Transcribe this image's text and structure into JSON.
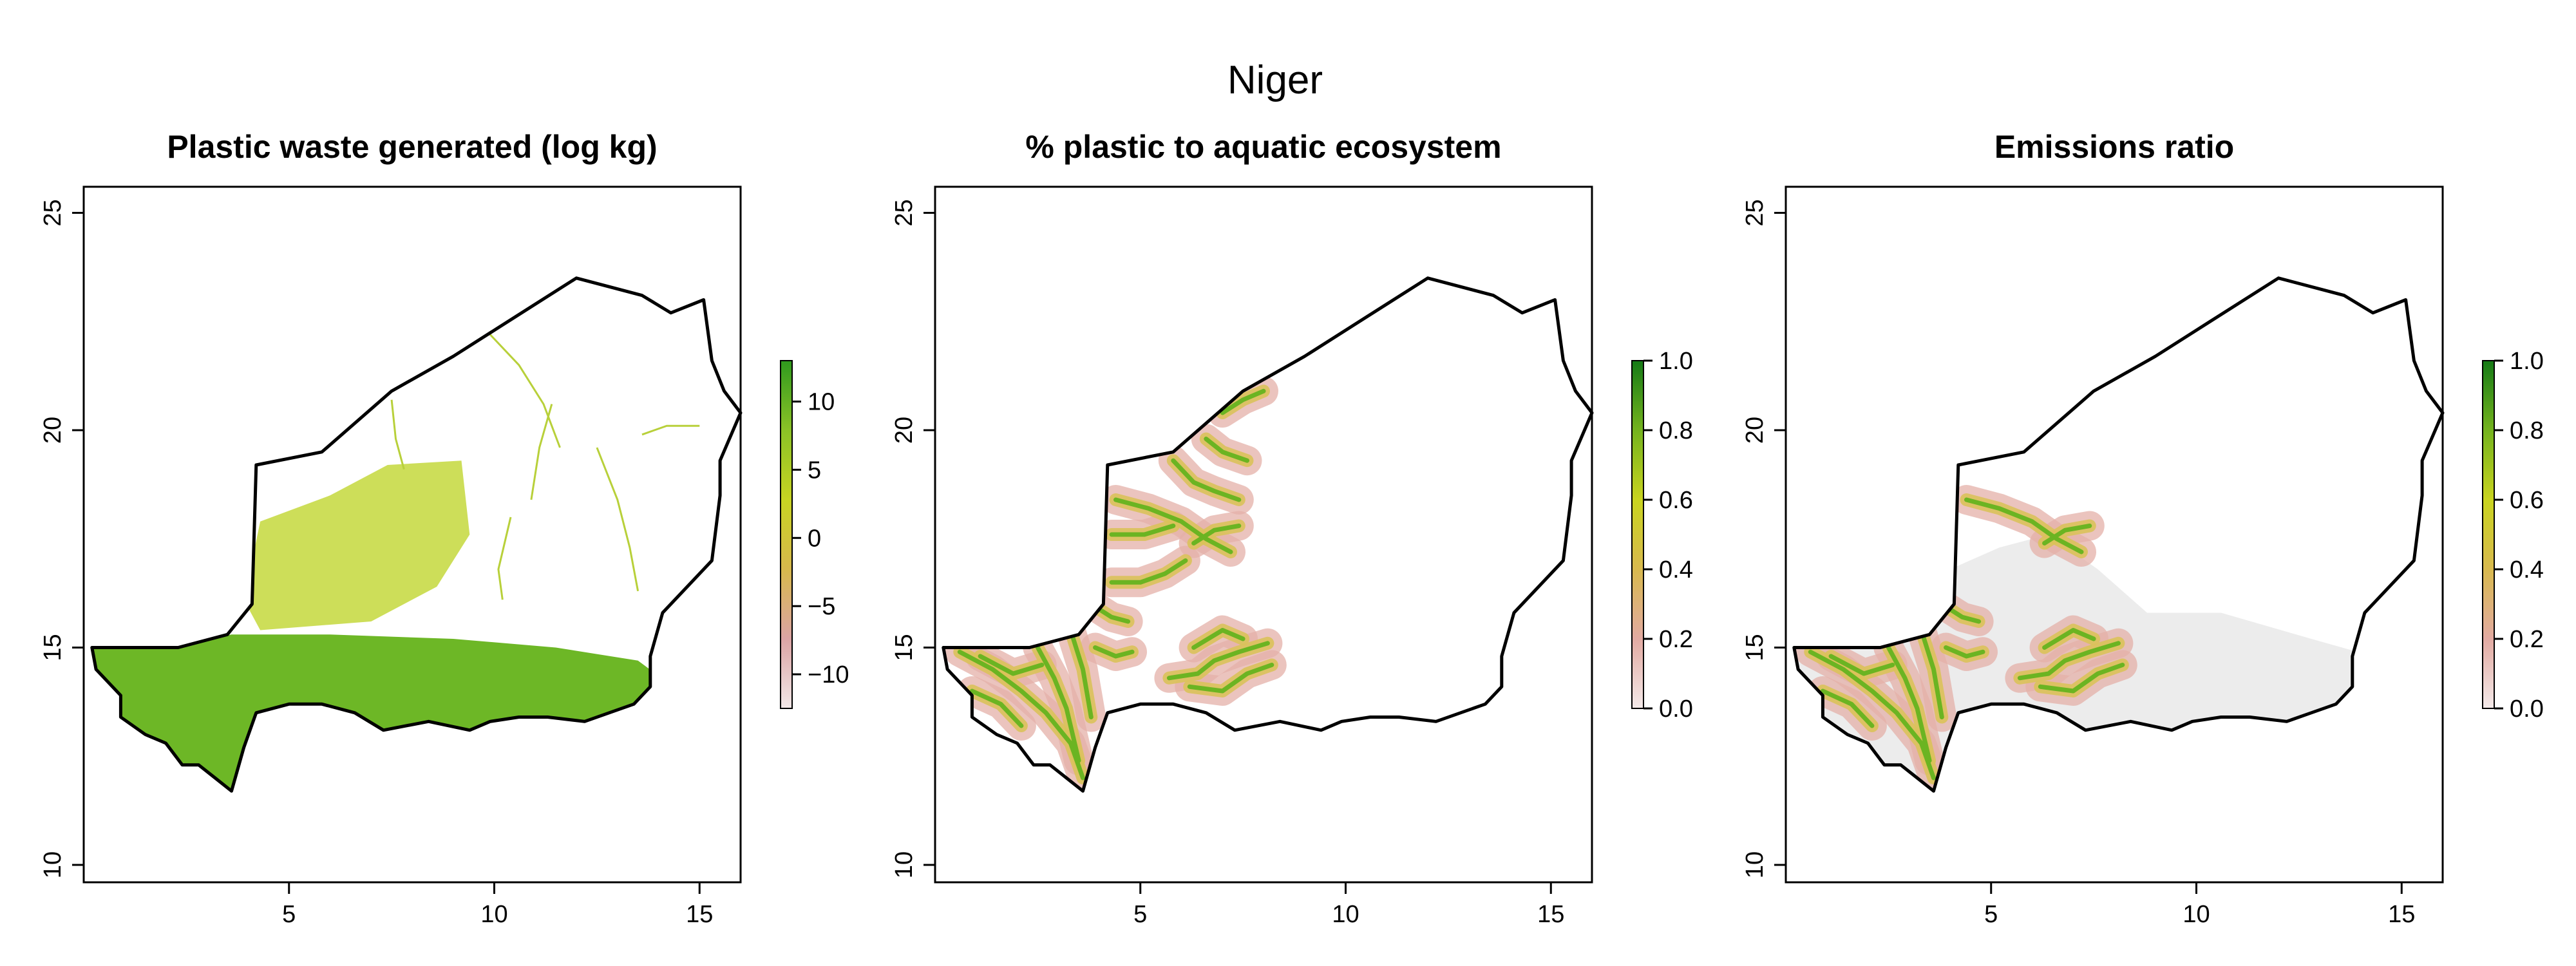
{
  "figure": {
    "title": "Niger"
  },
  "chart_data": [
    {
      "type": "heatmap",
      "title": "Plastic waste generated (log kg)",
      "xlim": [
        0,
        16
      ],
      "ylim": [
        9.6,
        25.6
      ],
      "xticks": [
        5,
        10,
        15
      ],
      "yticks": [
        10,
        15,
        20,
        25
      ],
      "legend": {
        "position": "right",
        "range": [
          -12.5,
          13
        ],
        "ticks": [
          10,
          5,
          0,
          -5,
          -10
        ],
        "tick_labels": [
          "10",
          "5",
          "0",
          "−5",
          "−10"
        ],
        "colors": [
          "#f2e8e8",
          "#dba4a4",
          "#d7b84c",
          "#c8d422",
          "#8bc226",
          "#2f9a1e"
        ]
      },
      "fill_color": "#6db726",
      "north_fill": "#c4d83c"
    },
    {
      "type": "heatmap",
      "title": "% plastic to aquatic ecosystem",
      "xlim": [
        0,
        16
      ],
      "ylim": [
        9.6,
        25.6
      ],
      "xticks": [
        5,
        10,
        15
      ],
      "yticks": [
        10,
        15,
        20,
        25
      ],
      "legend": {
        "position": "right",
        "range": [
          0,
          1
        ],
        "ticks": [
          1.0,
          0.8,
          0.6,
          0.4,
          0.2,
          0.0
        ],
        "tick_labels": [
          "1.0",
          "0.8",
          "0.6",
          "0.4",
          "0.2",
          "0.0"
        ],
        "colors": [
          "#f4eaea",
          "#e2aaa2",
          "#d8b94e",
          "#c9d41f",
          "#74b31e",
          "#157a16"
        ]
      },
      "background_fill": "#ffffff"
    },
    {
      "type": "heatmap",
      "title": "Emissions ratio",
      "xlim": [
        0,
        16
      ],
      "ylim": [
        9.6,
        25.6
      ],
      "xticks": [
        5,
        10,
        15
      ],
      "yticks": [
        10,
        15,
        20,
        25
      ],
      "legend": {
        "position": "right",
        "range": [
          0,
          1
        ],
        "ticks": [
          1.0,
          0.8,
          0.6,
          0.4,
          0.2,
          0.0
        ],
        "tick_labels": [
          "1.0",
          "0.8",
          "0.6",
          "0.4",
          "0.2",
          "0.0"
        ],
        "colors": [
          "#f4eaea",
          "#e2aaa2",
          "#d8b94e",
          "#c9d41f",
          "#74b31e",
          "#157a16"
        ]
      },
      "background_fill": "#ececec"
    }
  ]
}
